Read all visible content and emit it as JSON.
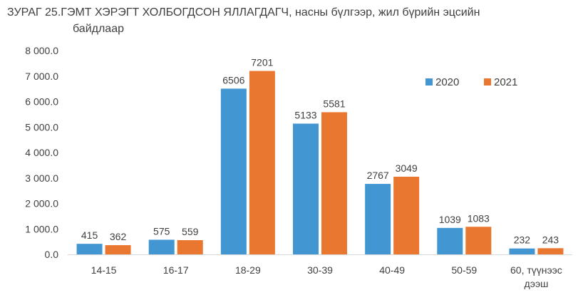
{
  "title_line1": "ЗУРАГ 25.ГЭМТ ХЭРЭГТ ХОЛБОГДСОН ЯЛЛАГДАГЧ, насны бүлгээр, жил бүрийн эцсийн",
  "title_line2": "байдлаар",
  "colors": {
    "2020": "#4297D2",
    "2021": "#E9772F",
    "axis": "#D9D9D9"
  },
  "chart_data": {
    "type": "bar",
    "categories": [
      "14-15",
      "16-17",
      "18-29",
      "30-39",
      "40-49",
      "50-59",
      "60, түүнээс дээш"
    ],
    "category_lines": [
      [
        "14-15"
      ],
      [
        "16-17"
      ],
      [
        "18-29"
      ],
      [
        "30-39"
      ],
      [
        "40-49"
      ],
      [
        "50-59"
      ],
      [
        "60, түүнээс",
        "дээш"
      ]
    ],
    "series": [
      {
        "name": "2020",
        "values": [
          415,
          575,
          6506,
          5133,
          2767,
          1039,
          232
        ]
      },
      {
        "name": "2021",
        "values": [
          362,
          559,
          7201,
          5581,
          3049,
          1083,
          243
        ]
      }
    ],
    "ylim": [
      0,
      8000
    ],
    "yticks": [
      0,
      1000,
      2000,
      3000,
      4000,
      5000,
      6000,
      7000,
      8000
    ],
    "ytick_labels": [
      "0.0",
      "1 000.0",
      "2 000.0",
      "3 000.0",
      "4 000.0",
      "5 000.0",
      "6 000.0",
      "7 000.0",
      "8 000.0"
    ],
    "grid": false,
    "legend": "top-right",
    "xlabel": "",
    "ylabel": ""
  }
}
